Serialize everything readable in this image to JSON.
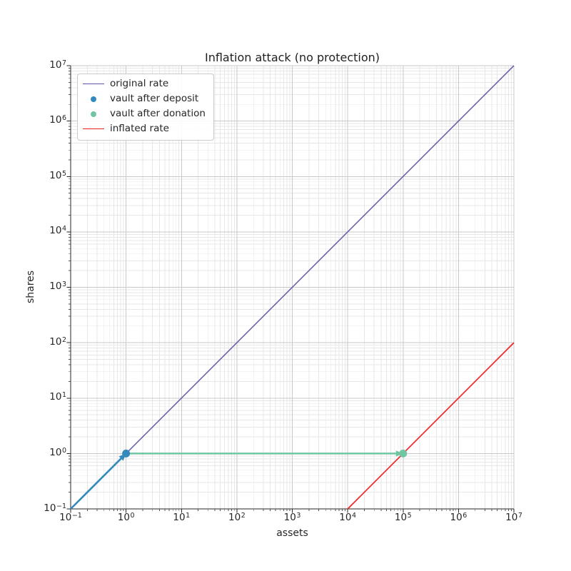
{
  "chart_data": {
    "type": "line",
    "title": "Inflation attack (no protection)",
    "xlabel": "assets",
    "ylabel": "shares",
    "xscale": "log",
    "yscale": "log",
    "xlim": [
      0.1,
      10000000
    ],
    "ylim": [
      0.1,
      10000000
    ],
    "x_tick_exponents": [
      -1,
      0,
      1,
      2,
      3,
      4,
      5,
      6,
      7
    ],
    "y_tick_exponents": [
      -1,
      0,
      1,
      2,
      3,
      4,
      5,
      6,
      7
    ],
    "grid": {
      "major": true,
      "minor": true,
      "major_color": "#c9c9c9",
      "minor_color": "#e7e7e7"
    },
    "axis_color": "#262626",
    "series": [
      {
        "name": "original rate",
        "type": "line",
        "color": "#5d54a8",
        "width": 1.4,
        "points": [
          [
            0.1,
            0.1
          ],
          [
            10000000,
            10000000
          ]
        ]
      },
      {
        "name": "inflated rate",
        "type": "line",
        "color": "#ef1f1f",
        "width": 1.6,
        "points": [
          [
            10000,
            0.1
          ],
          [
            10000000,
            100
          ]
        ]
      },
      {
        "name": "vault after deposit",
        "type": "scatter",
        "color": "#3489bd",
        "radius": 5.5,
        "points": [
          [
            1,
            1
          ]
        ]
      },
      {
        "name": "vault after donation",
        "type": "scatter",
        "color": "#70c6a2",
        "radius": 5.5,
        "points": [
          [
            100000,
            1
          ]
        ]
      }
    ],
    "annotations": [
      {
        "name": "deposit-arrow",
        "type": "arrow",
        "color": "#3489bd",
        "width": 2.6,
        "from": [
          0.1,
          0.1
        ],
        "to": [
          1,
          1
        ]
      },
      {
        "name": "donation-arrow",
        "type": "arrow",
        "color": "#70c6a2",
        "width": 2.5,
        "from": [
          1,
          1
        ],
        "to": [
          100000,
          1
        ]
      }
    ],
    "legend": {
      "position": "upper-left",
      "items": [
        {
          "label": "original rate",
          "marker": "line",
          "color": "#5d54a8"
        },
        {
          "label": "vault after deposit",
          "marker": "dot",
          "color": "#3489bd"
        },
        {
          "label": "vault after donation",
          "marker": "dot",
          "color": "#70c6a2"
        },
        {
          "label": "inflated rate",
          "marker": "line",
          "color": "#ef1f1f"
        }
      ]
    }
  }
}
